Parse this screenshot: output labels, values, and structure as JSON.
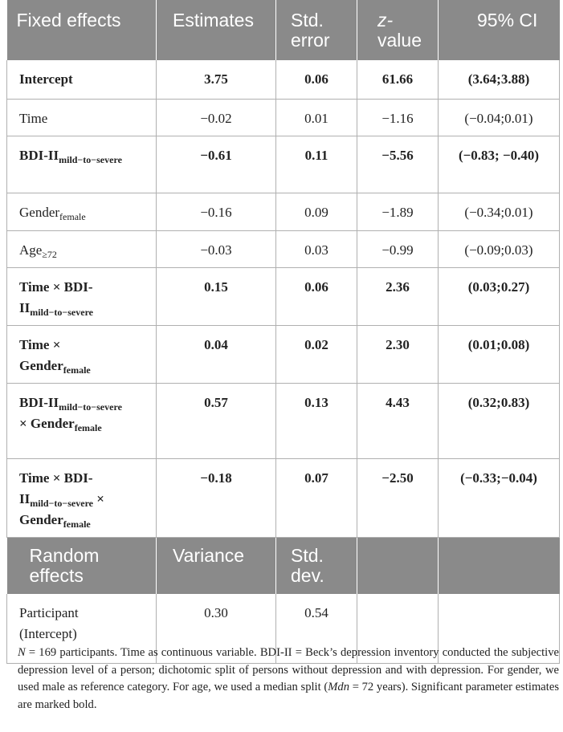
{
  "fixed_header": {
    "c0": "Fixed effects",
    "c1": "Estimates",
    "c2": "Std. error",
    "c3": "value",
    "c3_prefix": "z-",
    "c4": "95% CI"
  },
  "rows": [
    {
      "label": "Intercept",
      "sub": "",
      "label2": "",
      "sub2": "",
      "label3": "",
      "sub3": "",
      "est": "3.75",
      "se": "0.06",
      "z": "61.66",
      "ci": "(3.64;3.88)"
    },
    {
      "label": "Time",
      "sub": "",
      "est": "−0.02",
      "se": "0.01",
      "z": "−1.16",
      "ci": "(−0.04;0.01)"
    },
    {
      "label": "BDI-II",
      "sub": "mild−to−severe",
      "est": "−0.61",
      "se": "0.11",
      "z": "−5.56",
      "ci": "(−0.83; −0.40)"
    },
    {
      "label": "Gender",
      "sub": "female",
      "est": "−0.16",
      "se": "0.09",
      "z": "−1.89",
      "ci": "(−0.34;0.01)"
    },
    {
      "label": "Age",
      "sub": "≥72",
      "est": "−0.03",
      "se": "0.03",
      "z": "−0.99",
      "ci": "(−0.09;0.03)"
    },
    {
      "label": "Time × BDI-II",
      "sub": "mild−to−severe",
      "est": "0.15",
      "se": "0.06",
      "z": "2.36",
      "ci": "(0.03;0.27)"
    },
    {
      "label": "Time × Gender",
      "sub": "female",
      "est": "0.04",
      "se": "0.02",
      "z": "2.30",
      "ci": "(0.01;0.08)"
    },
    {
      "label": "BDI-II",
      "sub": "mild−to−severe",
      "label2": " × Gender",
      "sub2": "female",
      "est": "0.57",
      "se": "0.13",
      "z": "4.43",
      "ci": "(0.32;0.83)"
    },
    {
      "label": "Time × BDI-II",
      "sub": "mild−to−severe",
      "label2": " × Gender",
      "sub2": "female",
      "est": "−0.18",
      "se": "0.07",
      "z": "−2.50",
      "ci": "(−0.33;−0.04)"
    }
  ],
  "random_header": {
    "c0": "Random effects",
    "c1": "Variance",
    "c2": "Std. dev."
  },
  "random_rows": [
    {
      "label": "Participant (Intercept)",
      "var": "0.30",
      "sd": "0.54"
    }
  ],
  "note": {
    "n_symbol": "N",
    "part1": " = 169 participants. Time as continuous variable. BDI-II = Beck’s depression inventory conducted the subjective depression level of a person; dichotomic split of persons without depression and with depression. For gender, we used male as reference category. For age, we used a median split (",
    "mdn": "Mdn",
    "part2": " = 72 years). Significant parameter estimates are marked bold."
  }
}
